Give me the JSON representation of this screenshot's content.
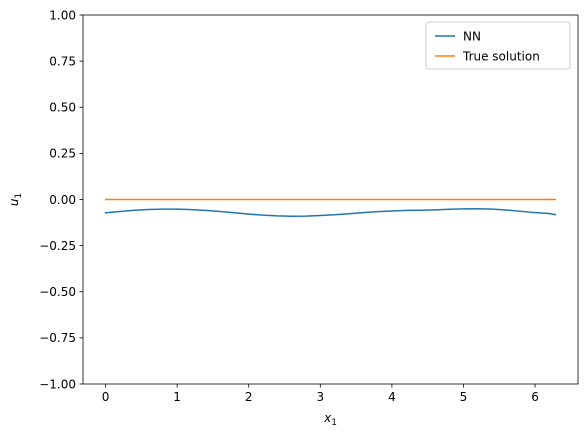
{
  "chart_data": {
    "type": "line",
    "title": "",
    "xlabel": {
      "base": "x",
      "sub": "1"
    },
    "ylabel": {
      "base": "u",
      "sub": "1"
    },
    "xlim": [
      -0.315,
      6.6
    ],
    "ylim": [
      -1.0,
      1.0
    ],
    "xticks": [
      0,
      1,
      2,
      3,
      4,
      5,
      6
    ],
    "xtick_labels": [
      "0",
      "1",
      "2",
      "3",
      "4",
      "5",
      "6"
    ],
    "yticks": [
      -1.0,
      -0.75,
      -0.5,
      -0.25,
      0.0,
      0.25,
      0.5,
      0.75,
      1.0
    ],
    "ytick_labels": [
      "−1.00",
      "−0.75",
      "−0.50",
      "−0.25",
      "0.00",
      "0.25",
      "0.50",
      "0.75",
      "1.00"
    ],
    "grid": false,
    "legend_position": "top-right",
    "series": [
      {
        "name": "NN",
        "color": "#1f77b4",
        "x": [
          0.0,
          0.2,
          0.4,
          0.6,
          0.8,
          1.0,
          1.2,
          1.4,
          1.6,
          1.8,
          2.0,
          2.2,
          2.4,
          2.6,
          2.8,
          3.0,
          3.2,
          3.4,
          3.6,
          3.8,
          4.0,
          4.2,
          4.4,
          4.6,
          4.8,
          5.0,
          5.2,
          5.4,
          5.6,
          5.8,
          6.0,
          6.2,
          6.283
        ],
        "y": [
          -0.072,
          -0.065,
          -0.058,
          -0.054,
          -0.052,
          -0.052,
          -0.055,
          -0.059,
          -0.065,
          -0.072,
          -0.079,
          -0.085,
          -0.089,
          -0.091,
          -0.09,
          -0.087,
          -0.083,
          -0.077,
          -0.071,
          -0.066,
          -0.062,
          -0.059,
          -0.058,
          -0.056,
          -0.053,
          -0.051,
          -0.05,
          -0.052,
          -0.057,
          -0.064,
          -0.071,
          -0.076,
          -0.082
        ]
      },
      {
        "name": "True solution",
        "color": "#ff7f0e",
        "x": [
          0.0,
          6.283
        ],
        "y": [
          0.0,
          0.0
        ]
      }
    ]
  }
}
